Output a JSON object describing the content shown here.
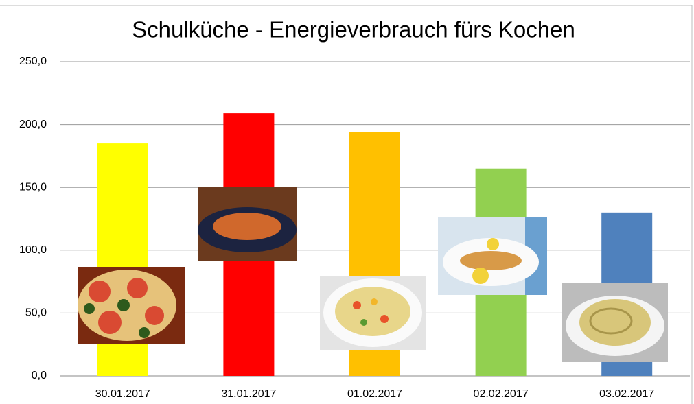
{
  "chart_data": {
    "type": "bar",
    "title": "Schulküche - Energieverbrauch fürs Kochen",
    "categories": [
      "30.01.2017",
      "31.01.2017",
      "01.02.2017",
      "02.02.2017",
      "03.02.2017"
    ],
    "values": [
      185,
      209,
      194,
      165,
      130
    ],
    "colors": [
      "#ffff00",
      "#ff0000",
      "#ffc000",
      "#92d050",
      "#4f81bd"
    ],
    "ylim": [
      0,
      250
    ],
    "yticks": [
      {
        "value": 0,
        "label": "0,0"
      },
      {
        "value": 50,
        "label": "50,0"
      },
      {
        "value": 100,
        "label": "100,0"
      },
      {
        "value": 150,
        "label": "150,0"
      },
      {
        "value": 200,
        "label": "200,0"
      },
      {
        "value": 250,
        "label": "250,0"
      }
    ],
    "grid": true
  }
}
